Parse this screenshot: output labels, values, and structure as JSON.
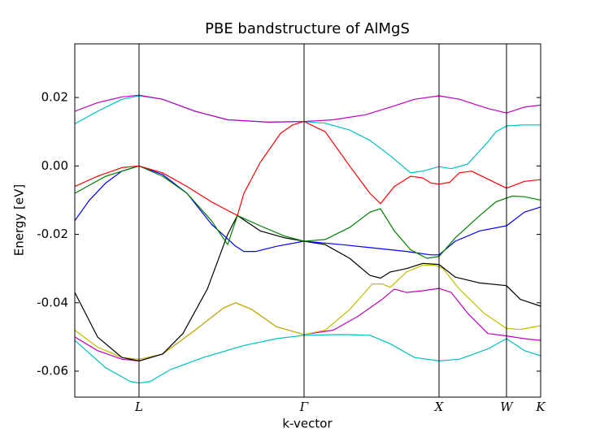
{
  "chart_data": {
    "type": "line",
    "title": "PBE bandstructure of AlMgS",
    "xlabel": "k-vector",
    "ylabel": "Energy [eV]",
    "xlim": [
      0,
      5.73
    ],
    "ylim": [
      -0.0676,
      0.0357
    ],
    "xticks": [
      {
        "value": 0.79,
        "label": "L"
      },
      {
        "value": 2.82,
        "label": "Γ"
      },
      {
        "value": 4.48,
        "label": "X"
      },
      {
        "value": 5.31,
        "label": "W"
      },
      {
        "value": 5.73,
        "label": "K"
      }
    ],
    "yticks": [
      0.02,
      {
        "value": 0,
        "label": "0.00"
      },
      -0.02,
      -0.04,
      -0.06
    ],
    "series": [
      {
        "color": "#00bfbf",
        "x": [
          0,
          0.38,
          0.68,
          0.79,
          0.93,
          1.18,
          1.58,
          2.08,
          2.48,
          2.82,
          3.28,
          3.63,
          3.88,
          4.18,
          4.48,
          4.73,
          5.08,
          5.31,
          5.53,
          5.73
        ],
        "values": [
          -0.051,
          -0.059,
          -0.063,
          -0.0635,
          -0.063,
          -0.0595,
          -0.056,
          -0.0525,
          -0.0505,
          -0.0495,
          -0.0493,
          -0.0495,
          -0.052,
          -0.056,
          -0.057,
          -0.0565,
          -0.0535,
          -0.0505,
          -0.054,
          -0.0555
        ]
      },
      {
        "color": "#bf00bf",
        "x": [
          0,
          0.28,
          0.58,
          0.79,
          1.08,
          1.48,
          1.83,
          1.98,
          2.18,
          2.48,
          2.82,
          3.18,
          3.48,
          3.78,
          3.93,
          4.08,
          4.28,
          4.48,
          4.63,
          4.83,
          5.08,
          5.31,
          5.53,
          5.73
        ],
        "values": [
          -0.05,
          -0.054,
          -0.0565,
          -0.057,
          -0.055,
          -0.048,
          -0.0415,
          -0.04,
          -0.042,
          -0.047,
          -0.0493,
          -0.048,
          -0.044,
          -0.039,
          -0.036,
          -0.037,
          -0.0365,
          -0.0358,
          -0.037,
          -0.043,
          -0.049,
          -0.0497,
          -0.0505,
          -0.051
        ]
      },
      {
        "color": "#bfbf00",
        "x": [
          0,
          0.28,
          0.58,
          0.79,
          1.08,
          1.48,
          1.83,
          1.98,
          2.18,
          2.48,
          2.82,
          3.08,
          3.38,
          3.66,
          3.78,
          3.88,
          4.08,
          4.28,
          4.43,
          4.53,
          4.73,
          5.03,
          5.31,
          5.48,
          5.73
        ],
        "values": [
          -0.048,
          -0.053,
          -0.056,
          -0.0565,
          -0.055,
          -0.048,
          -0.0415,
          -0.04,
          -0.042,
          -0.047,
          -0.0493,
          -0.048,
          -0.042,
          -0.0345,
          -0.0345,
          -0.0355,
          -0.031,
          -0.029,
          -0.029,
          -0.03,
          -0.036,
          -0.043,
          -0.0475,
          -0.0478,
          -0.0467
        ]
      },
      {
        "color": "#000000",
        "x": [
          0,
          0.28,
          0.58,
          0.79,
          1.08,
          1.33,
          1.63,
          1.88,
          2.0,
          2.28,
          2.58,
          2.82,
          3.08,
          3.38,
          3.63,
          3.76,
          3.88,
          4.08,
          4.28,
          4.48,
          4.68,
          4.98,
          5.31,
          5.48,
          5.73
        ],
        "values": [
          -0.037,
          -0.05,
          -0.056,
          -0.057,
          -0.055,
          -0.049,
          -0.036,
          -0.02,
          -0.0145,
          -0.019,
          -0.021,
          -0.022,
          -0.023,
          -0.027,
          -0.032,
          -0.0328,
          -0.031,
          -0.03,
          -0.0285,
          -0.0288,
          -0.0325,
          -0.0342,
          -0.035,
          -0.039,
          -0.041
        ]
      },
      {
        "color": "#0000ff",
        "x": [
          0,
          0.18,
          0.38,
          0.58,
          0.79,
          1.08,
          1.38,
          1.68,
          1.98,
          2.08,
          2.23,
          2.48,
          2.82,
          3.28,
          3.68,
          4.08,
          4.38,
          4.48,
          4.68,
          4.98,
          5.31,
          5.53,
          5.73
        ],
        "values": [
          -0.016,
          -0.01,
          -0.005,
          -0.0015,
          0,
          -0.0025,
          -0.008,
          -0.017,
          -0.0235,
          -0.025,
          -0.025,
          -0.0235,
          -0.022,
          -0.023,
          -0.024,
          -0.025,
          -0.026,
          -0.026,
          -0.022,
          -0.019,
          -0.0175,
          -0.0135,
          -0.012
        ]
      },
      {
        "color": "#008000",
        "x": [
          0,
          0.38,
          0.79,
          1.08,
          1.38,
          1.68,
          1.88,
          2.0,
          2.28,
          2.58,
          2.82,
          3.08,
          3.38,
          3.63,
          3.76,
          3.93,
          4.13,
          4.33,
          4.48,
          4.68,
          4.98,
          5.18,
          5.38,
          5.53,
          5.73
        ],
        "values": [
          -0.008,
          -0.003,
          0,
          -0.003,
          -0.008,
          -0.016,
          -0.023,
          -0.0145,
          -0.0175,
          -0.0205,
          -0.022,
          -0.0215,
          -0.018,
          -0.0135,
          -0.0125,
          -0.019,
          -0.0245,
          -0.027,
          -0.0265,
          -0.021,
          -0.0145,
          -0.0105,
          -0.0088,
          -0.009,
          -0.01
        ]
      },
      {
        "color": "#ff0000",
        "x": [
          0,
          0.28,
          0.58,
          0.79,
          1.08,
          1.38,
          1.68,
          2.0,
          2.08,
          2.28,
          2.53,
          2.68,
          2.82,
          3.08,
          3.38,
          3.63,
          3.76,
          3.93,
          4.13,
          4.28,
          4.38,
          4.48,
          4.61,
          4.73,
          4.88,
          5.31,
          5.53,
          5.73
        ],
        "values": [
          -0.006,
          -0.003,
          -0.0005,
          0,
          -0.002,
          -0.006,
          -0.0105,
          -0.0145,
          -0.008,
          0.001,
          0.0095,
          0.012,
          0.013,
          0.01,
          0,
          -0.008,
          -0.011,
          -0.006,
          -0.003,
          -0.0035,
          -0.005,
          -0.0053,
          -0.0048,
          -0.002,
          -0.0015,
          -0.0065,
          -0.0045,
          -0.004
        ]
      },
      {
        "color": "#00bfbf",
        "x": [
          0,
          0.28,
          0.58,
          0.79,
          1.08,
          1.48,
          1.88,
          2.38,
          2.82,
          3.08,
          3.38,
          3.63,
          3.88,
          4.13,
          4.28,
          4.48,
          4.63,
          4.83,
          5.08,
          5.18,
          5.31,
          5.53,
          5.73
        ],
        "values": [
          0.0123,
          0.016,
          0.0195,
          0.0205,
          0.0195,
          0.016,
          0.0135,
          0.0128,
          0.013,
          0.0125,
          0.0105,
          0.0075,
          0.003,
          -0.002,
          -0.0015,
          -0.0002,
          -0.0008,
          0.0005,
          0.007,
          0.01,
          0.0117,
          0.012,
          0.012
        ]
      },
      {
        "color": "#bf00bf",
        "x": [
          0,
          0.28,
          0.58,
          0.79,
          1.08,
          1.48,
          1.88,
          2.38,
          2.82,
          3.18,
          3.58,
          3.88,
          4.18,
          4.48,
          4.73,
          5.08,
          5.31,
          5.53,
          5.73
        ],
        "values": [
          0.016,
          0.0185,
          0.0202,
          0.0207,
          0.0195,
          0.016,
          0.0135,
          0.0128,
          0.013,
          0.0135,
          0.015,
          0.0172,
          0.0195,
          0.0205,
          0.0195,
          0.0168,
          0.0155,
          0.0172,
          0.0178
        ]
      }
    ]
  }
}
